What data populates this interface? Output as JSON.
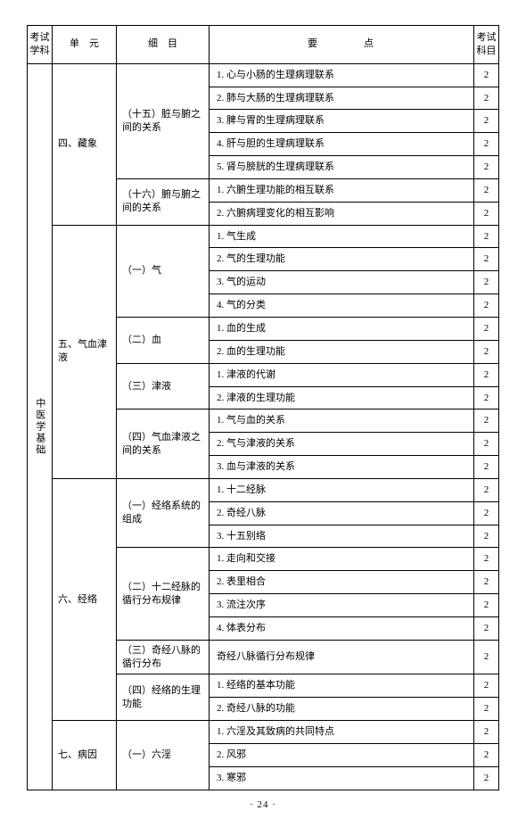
{
  "headers": {
    "subject": "考试学科",
    "unit": "单　元",
    "detail": "细　目",
    "point": "要　　点",
    "kemu": "考试科目"
  },
  "subject": "中医学基础",
  "kemu_value": "2",
  "page_number": "· 24 ·",
  "rows": [
    {
      "unit": "四、藏象",
      "detail": "（十五）脏与腑之间的关系",
      "point": "1. 心与小肠的生理病理联系"
    },
    {
      "point": "2. 肺与大肠的生理病理联系"
    },
    {
      "point": "3. 脾与胃的生理病理联系"
    },
    {
      "point": "4. 肝与胆的生理病理联系"
    },
    {
      "point": "5. 肾与膀胱的生理病理联系"
    },
    {
      "detail": "（十六）腑与腑之间的关系",
      "point": "1. 六腑生理功能的相互联系"
    },
    {
      "point": "2. 六腑病理变化的相互影响"
    },
    {
      "unit": "五、气血津液",
      "detail": "（一）气",
      "point": "1. 气生成"
    },
    {
      "point": "2. 气的生理功能"
    },
    {
      "point": "3. 气的运动"
    },
    {
      "point": "4. 气的分类"
    },
    {
      "detail": "（二）血",
      "point": "1. 血的生成"
    },
    {
      "point": "2. 血的生理功能"
    },
    {
      "detail": "（三）津液",
      "point": "1. 津液的代谢"
    },
    {
      "point": "2. 津液的生理功能"
    },
    {
      "detail": "（四）气血津液之间的关系",
      "point": "1. 气与血的关系"
    },
    {
      "point": "2. 气与津液的关系"
    },
    {
      "point": "3. 血与津液的关系"
    },
    {
      "unit": "六、经络",
      "detail": "（一）经络系统的组成",
      "point": "1. 十二经脉"
    },
    {
      "point": "2. 奇经八脉"
    },
    {
      "point": "3. 十五别络"
    },
    {
      "detail": "（二）十二经脉的循行分布规律",
      "point": "1. 走向和交接"
    },
    {
      "point": "2. 表里相合"
    },
    {
      "point": "3. 流注次序"
    },
    {
      "point": "4. 体表分布"
    },
    {
      "detail": "（三）奇经八脉的循行分布",
      "point": "奇经八脉循行分布规律"
    },
    {
      "detail": "（四）经络的生理功能",
      "point": "1. 经络的基本功能"
    },
    {
      "point": "2. 奇经八脉的功能"
    },
    {
      "unit": "七、病因",
      "detail": "（一）六淫",
      "point": "1. 六淫及其致病的共同特点"
    },
    {
      "point": "2. 风邪"
    },
    {
      "point": "3. 寒邪"
    }
  ],
  "spans": {
    "subject_rowspan": 31,
    "unit_spans": [
      7,
      11,
      10,
      3
    ],
    "detail_spans": [
      5,
      2,
      4,
      2,
      2,
      3,
      3,
      4,
      1,
      2,
      3
    ]
  }
}
